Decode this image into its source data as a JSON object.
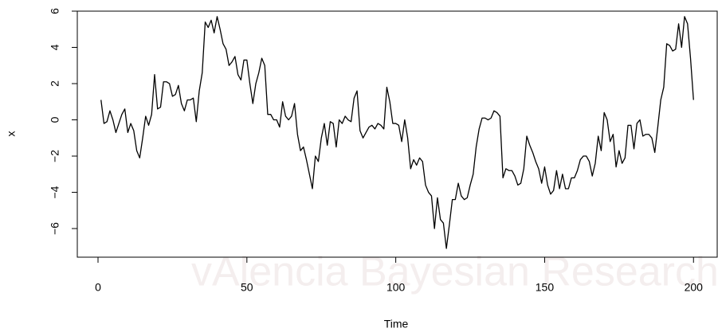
{
  "chart_data": {
    "type": "line",
    "xlabel": "Time",
    "ylabel": "x",
    "watermark": "vAlencia Bayesian Research group",
    "x": [
      1,
      2,
      3,
      4,
      5,
      6,
      7,
      8,
      9,
      10,
      11,
      12,
      13,
      14,
      15,
      16,
      17,
      18,
      19,
      20,
      21,
      22,
      23,
      24,
      25,
      26,
      27,
      28,
      29,
      30,
      31,
      32,
      33,
      34,
      35,
      36,
      37,
      38,
      39,
      40,
      41,
      42,
      43,
      44,
      45,
      46,
      47,
      48,
      49,
      50,
      51,
      52,
      53,
      54,
      55,
      56,
      57,
      58,
      59,
      60,
      61,
      62,
      63,
      64,
      65,
      66,
      67,
      68,
      69,
      70,
      71,
      72,
      73,
      74,
      75,
      76,
      77,
      78,
      79,
      80,
      81,
      82,
      83,
      84,
      85,
      86,
      87,
      88,
      89,
      90,
      91,
      92,
      93,
      94,
      95,
      96,
      97,
      98,
      99,
      100,
      101,
      102,
      103,
      104,
      105,
      106,
      107,
      108,
      109,
      110,
      111,
      112,
      113,
      114,
      115,
      116,
      117,
      118,
      119,
      120,
      121,
      122,
      123,
      124,
      125,
      126,
      127,
      128,
      129,
      130,
      131,
      132,
      133,
      134,
      135,
      136,
      137,
      138,
      139,
      140,
      141,
      142,
      143,
      144,
      145,
      146,
      147,
      148,
      149,
      150,
      151,
      152,
      153,
      154,
      155,
      156,
      157,
      158,
      159,
      160,
      161,
      162,
      163,
      164,
      165,
      166,
      167,
      168,
      169,
      170,
      171,
      172,
      173,
      174,
      175,
      176,
      177,
      178,
      179,
      180,
      181,
      182,
      183,
      184,
      185,
      186,
      187,
      188,
      189,
      190,
      191,
      192,
      193,
      194,
      195,
      196,
      197,
      198,
      199,
      200
    ],
    "series": [
      {
        "color": "#000000",
        "values": [
          1.1,
          -0.2,
          -0.1,
          0.5,
          0,
          -0.7,
          -0.2,
          0.3,
          0.6,
          -0.7,
          -0.2,
          -0.6,
          -1.7,
          -2.1,
          -1.0,
          0.2,
          -0.3,
          0.3,
          2.5,
          0.6,
          0.7,
          2.1,
          2.1,
          2.0,
          1.3,
          1.4,
          1.9,
          0.9,
          0.5,
          1.1,
          1.1,
          1.2,
          -0.1,
          1.6,
          2.6,
          5.4,
          5.1,
          5.5,
          4.8,
          5.7,
          5.0,
          4.2,
          3.9,
          3.0,
          3.2,
          3.5,
          2.5,
          2.2,
          3.3,
          3.3,
          2.0,
          0.9,
          2.0,
          2.6,
          3.4,
          3.0,
          0.3,
          0.3,
          0,
          0,
          -0.4,
          1.0,
          0.2,
          0,
          0.2,
          0.9,
          -0.8,
          -1.7,
          -1.5,
          -2.2,
          -3.0,
          -3.8,
          -2.0,
          -2.3,
          -1.0,
          -0.2,
          -1.4,
          -0.1,
          -0.2,
          -1.5,
          0,
          -0.2,
          0.2,
          0,
          -0.1,
          1.2,
          1.6,
          -0.6,
          -1.0,
          -0.7,
          -0.4,
          -0.3,
          -0.5,
          -0.2,
          -0.3,
          -0.5,
          1.8,
          1.0,
          -0.2,
          -0.2,
          -0.3,
          -1.2,
          0,
          -1.0,
          -2.7,
          -2.2,
          -2.5,
          -2.1,
          -2.3,
          -3.6,
          -4.0,
          -4.2,
          -6.0,
          -4.3,
          -5.5,
          -5.7,
          -7.1,
          -5.8,
          -4.4,
          -4.4,
          -3.5,
          -4.2,
          -4.4,
          -4.3,
          -3.6,
          -3.0,
          -1.5,
          -0.5,
          0.1,
          0.1,
          0,
          0.1,
          0.5,
          0.4,
          0.2,
          -3.2,
          -2.7,
          -2.8,
          -2.8,
          -3.1,
          -3.6,
          -3.5,
          -2.7,
          -0.9,
          -1.4,
          -1.8,
          -2.3,
          -2.7,
          -3.5,
          -2.6,
          -3.6,
          -4.1,
          -3.9,
          -2.8,
          -3.8,
          -3.0,
          -3.8,
          -3.8,
          -3.2,
          -3.2,
          -2.8,
          -2.2,
          -2.0,
          -2.0,
          -2.3,
          -3.1,
          -2.4,
          -0.9,
          -1.7,
          0.4,
          0,
          -1.2,
          -0.8,
          -2.6,
          -1.7,
          -2.4,
          -2.1,
          -0.3,
          -0.3,
          -1.6,
          -0.2,
          0,
          -0.9,
          -0.8,
          -0.8,
          -1.0,
          -1.8,
          -0.4,
          1.1,
          1.8,
          4.2,
          4.1,
          3.8,
          3.9,
          5.3,
          4.0,
          5.7,
          5.3,
          3.4,
          1.1
        ]
      }
    ],
    "xlim": [
      -6.96,
      207.96
    ],
    "ylim": [
      -7.58,
      6.0
    ],
    "xticks": [
      0,
      50,
      100,
      150,
      200
    ],
    "yticks": [
      {
        "value": -6,
        "label": "−6"
      },
      {
        "value": -4,
        "label": "−4"
      },
      {
        "value": -2,
        "label": "−2"
      },
      0,
      2,
      4,
      6
    ]
  }
}
